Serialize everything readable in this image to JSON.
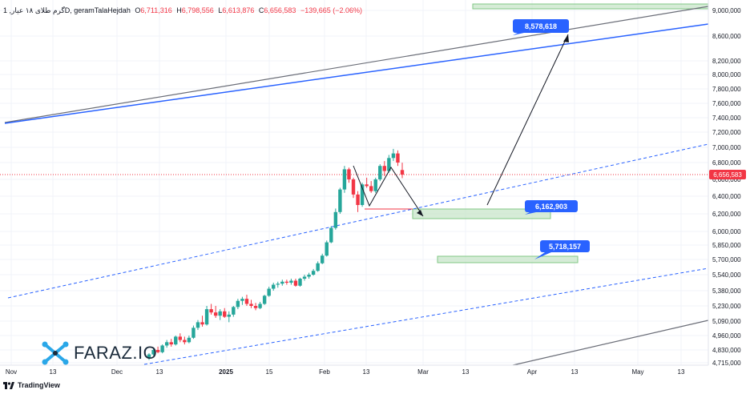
{
  "header": {
    "symbol": "1 ,گرم طلای ۱۸ عیارD, geramTalaHejdah",
    "o_label": "O",
    "o_value": "6,711,316",
    "h_label": "H",
    "h_value": "6,798,556",
    "l_label": "L",
    "l_value": "6,613,876",
    "c_label": "C",
    "c_value": "6,656,583",
    "change": "−139,665 (−2.06%)"
  },
  "footer": {
    "logo_text": "TradingView"
  },
  "brand": {
    "name": "FARAZ.IO"
  },
  "colors": {
    "up": "#26a69a",
    "down": "#f23645",
    "trend_blue": "#2962ff",
    "trend_gray": "#787b86",
    "zone_fill": "#c8e6c9",
    "zone_border": "#81c784",
    "label_bg": "#2962ff",
    "price_label_bg": "#f23645"
  },
  "chart_data": {
    "type": "candlestick",
    "title": "",
    "y_axis_ticks": [
      "9,000,000",
      "8,600,000",
      "8,200,000",
      "8,000,000",
      "7,800,000",
      "7,600,000",
      "7,400,000",
      "7,200,000",
      "7,000,000",
      "6,800,000",
      "6,600,000",
      "6,400,000",
      "6,200,000",
      "6,000,000",
      "5,850,000",
      "5,700,000",
      "5,540,000",
      "5,380,000",
      "5,230,000",
      "5,090,000",
      "4,960,000",
      "4,830,000",
      "4,715,000"
    ],
    "x_axis_ticks": [
      "Nov",
      "13",
      "Dec",
      "13",
      "2025",
      "15",
      "Feb",
      "13",
      "Mar",
      "13",
      "Apr",
      "13",
      "May",
      "13"
    ],
    "last_price": "6,656,583",
    "annotations": [
      "8,578,618",
      "6,162,903",
      "5,718,157"
    ],
    "candles": [
      {
        "o": 4760000,
        "h": 4800000,
        "l": 4740000,
        "c": 4790000
      },
      {
        "o": 4790000,
        "h": 4850000,
        "l": 4780000,
        "c": 4830000
      },
      {
        "o": 4830000,
        "h": 4860000,
        "l": 4800000,
        "c": 4810000
      },
      {
        "o": 4810000,
        "h": 4880000,
        "l": 4800000,
        "c": 4870000
      },
      {
        "o": 4870000,
        "h": 4920000,
        "l": 4850000,
        "c": 4900000
      },
      {
        "o": 4900000,
        "h": 4930000,
        "l": 4860000,
        "c": 4880000
      },
      {
        "o": 4880000,
        "h": 4960000,
        "l": 4870000,
        "c": 4950000
      },
      {
        "o": 4950000,
        "h": 4980000,
        "l": 4900000,
        "c": 4920000
      },
      {
        "o": 4920000,
        "h": 4950000,
        "l": 4880000,
        "c": 4900000
      },
      {
        "o": 4900000,
        "h": 4960000,
        "l": 4890000,
        "c": 4940000
      },
      {
        "o": 4940000,
        "h": 5050000,
        "l": 4930000,
        "c": 5030000
      },
      {
        "o": 5030000,
        "h": 5100000,
        "l": 5010000,
        "c": 5080000
      },
      {
        "o": 5080000,
        "h": 5140000,
        "l": 5040000,
        "c": 5060000
      },
      {
        "o": 5060000,
        "h": 5230000,
        "l": 5050000,
        "c": 5200000
      },
      {
        "o": 5200000,
        "h": 5250000,
        "l": 5150000,
        "c": 5170000
      },
      {
        "o": 5170000,
        "h": 5230000,
        "l": 5120000,
        "c": 5140000
      },
      {
        "o": 5140000,
        "h": 5200000,
        "l": 5100000,
        "c": 5180000
      },
      {
        "o": 5180000,
        "h": 5210000,
        "l": 5120000,
        "c": 5130000
      },
      {
        "o": 5130000,
        "h": 5180000,
        "l": 5080000,
        "c": 5150000
      },
      {
        "o": 5150000,
        "h": 5230000,
        "l": 5130000,
        "c": 5220000
      },
      {
        "o": 5220000,
        "h": 5300000,
        "l": 5200000,
        "c": 5280000
      },
      {
        "o": 5280000,
        "h": 5320000,
        "l": 5240000,
        "c": 5300000
      },
      {
        "o": 5300000,
        "h": 5340000,
        "l": 5230000,
        "c": 5250000
      },
      {
        "o": 5250000,
        "h": 5290000,
        "l": 5210000,
        "c": 5230000
      },
      {
        "o": 5230000,
        "h": 5260000,
        "l": 5190000,
        "c": 5210000
      },
      {
        "o": 5210000,
        "h": 5270000,
        "l": 5200000,
        "c": 5250000
      },
      {
        "o": 5250000,
        "h": 5340000,
        "l": 5240000,
        "c": 5330000
      },
      {
        "o": 5330000,
        "h": 5420000,
        "l": 5320000,
        "c": 5400000
      },
      {
        "o": 5400000,
        "h": 5460000,
        "l": 5380000,
        "c": 5440000
      },
      {
        "o": 5440000,
        "h": 5470000,
        "l": 5410000,
        "c": 5450000
      },
      {
        "o": 5450000,
        "h": 5490000,
        "l": 5430000,
        "c": 5470000
      },
      {
        "o": 5470000,
        "h": 5490000,
        "l": 5440000,
        "c": 5460000
      },
      {
        "o": 5460000,
        "h": 5500000,
        "l": 5440000,
        "c": 5480000
      },
      {
        "o": 5480000,
        "h": 5500000,
        "l": 5420000,
        "c": 5430000
      },
      {
        "o": 5430000,
        "h": 5510000,
        "l": 5420000,
        "c": 5500000
      },
      {
        "o": 5500000,
        "h": 5540000,
        "l": 5480000,
        "c": 5520000
      },
      {
        "o": 5520000,
        "h": 5560000,
        "l": 5500000,
        "c": 5540000
      },
      {
        "o": 5540000,
        "h": 5600000,
        "l": 5530000,
        "c": 5580000
      },
      {
        "o": 5580000,
        "h": 5680000,
        "l": 5570000,
        "c": 5660000
      },
      {
        "o": 5660000,
        "h": 5760000,
        "l": 5650000,
        "c": 5740000
      },
      {
        "o": 5740000,
        "h": 5900000,
        "l": 5730000,
        "c": 5880000
      },
      {
        "o": 5880000,
        "h": 6060000,
        "l": 5870000,
        "c": 6040000
      },
      {
        "o": 6040000,
        "h": 6260000,
        "l": 6020000,
        "c": 6220000
      },
      {
        "o": 6220000,
        "h": 6500000,
        "l": 6200000,
        "c": 6480000
      },
      {
        "o": 6480000,
        "h": 6760000,
        "l": 6440000,
        "c": 6720000
      },
      {
        "o": 6720000,
        "h": 6740000,
        "l": 6560000,
        "c": 6600000
      },
      {
        "o": 6600000,
        "h": 6620000,
        "l": 6380000,
        "c": 6420000
      },
      {
        "o": 6420000,
        "h": 6460000,
        "l": 6220000,
        "c": 6300000
      },
      {
        "o": 6300000,
        "h": 6560000,
        "l": 6280000,
        "c": 6540000
      },
      {
        "o": 6540000,
        "h": 6620000,
        "l": 6500000,
        "c": 6520000
      },
      {
        "o": 6520000,
        "h": 6580000,
        "l": 6440000,
        "c": 6460000
      },
      {
        "o": 6460000,
        "h": 6620000,
        "l": 6440000,
        "c": 6600000
      },
      {
        "o": 6600000,
        "h": 6780000,
        "l": 6580000,
        "c": 6760000
      },
      {
        "o": 6760000,
        "h": 6820000,
        "l": 6640000,
        "c": 6700000
      },
      {
        "o": 6700000,
        "h": 6900000,
        "l": 6680000,
        "c": 6860000
      },
      {
        "o": 6860000,
        "h": 6980000,
        "l": 6820000,
        "c": 6920000
      },
      {
        "o": 6920000,
        "h": 6960000,
        "l": 6760000,
        "c": 6800000
      },
      {
        "o": 6711316,
        "h": 6798556,
        "l": 6613876,
        "c": 6656583
      }
    ]
  }
}
